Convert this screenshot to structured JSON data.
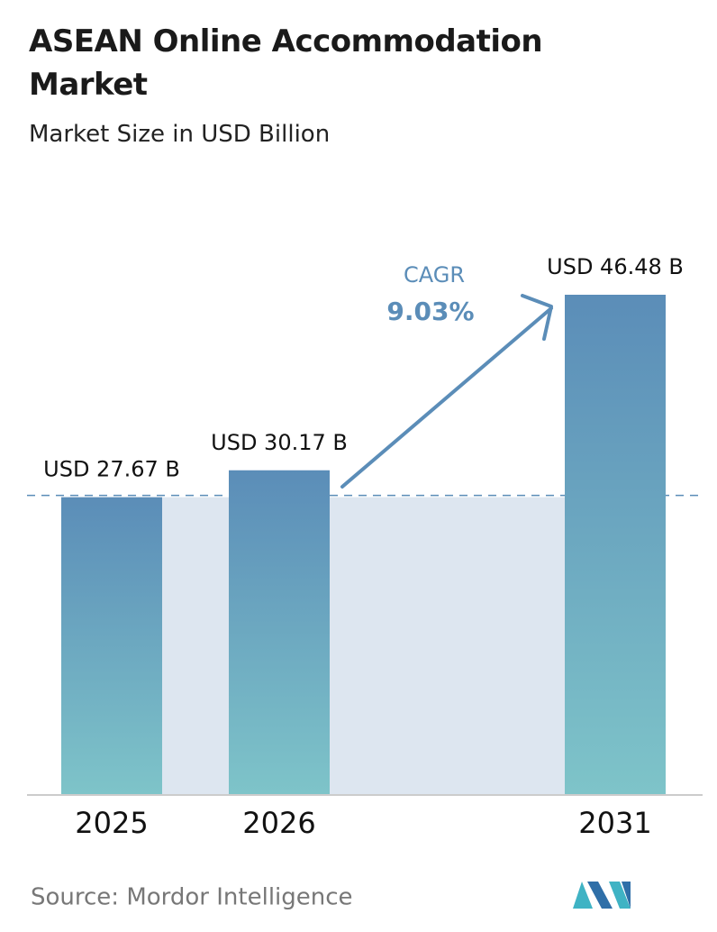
{
  "chart_data": {
    "type": "bar",
    "title": "ASEAN Online Accommodation Market",
    "subtitle": "Market Size in USD Billion",
    "categories": [
      "2025",
      "2026",
      "2031"
    ],
    "values": [
      27.67,
      30.17,
      46.48
    ],
    "value_labels": [
      "USD 27.67 B",
      "USD 30.17 B",
      "USD 46.48 B"
    ],
    "color": [
      "#5b8db8",
      "#7ec4c9"
    ],
    "annotation": {
      "label": "CAGR",
      "value": "9.03%"
    },
    "source": "Source: Mordor Intelligence"
  }
}
